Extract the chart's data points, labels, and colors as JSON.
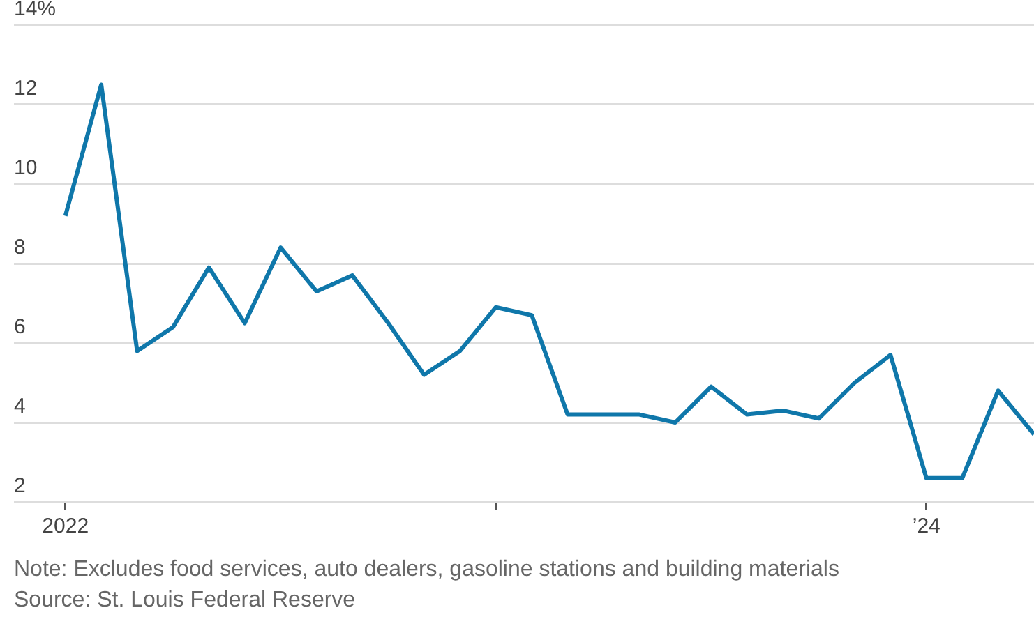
{
  "chart_data": {
    "type": "line",
    "x": [
      "2022-01",
      "2022-02",
      "2022-03",
      "2022-04",
      "2022-05",
      "2022-06",
      "2022-07",
      "2022-08",
      "2022-09",
      "2022-10",
      "2022-11",
      "2022-12",
      "2023-01",
      "2023-02",
      "2023-03",
      "2023-04",
      "2023-05",
      "2023-06",
      "2023-07",
      "2023-08",
      "2023-09",
      "2023-10",
      "2023-11",
      "2023-12",
      "2024-01",
      "2024-02",
      "2024-03",
      "2024-04"
    ],
    "series": [
      {
        "color": "#0f77aa",
        "values": [
          9.2,
          12.5,
          5.8,
          6.4,
          7.9,
          6.5,
          8.4,
          7.3,
          7.7,
          6.5,
          5.2,
          5.8,
          6.9,
          6.7,
          4.2,
          4.2,
          4.2,
          4.0,
          4.9,
          4.2,
          4.3,
          4.1,
          5.0,
          5.7,
          2.6,
          2.6,
          4.8,
          3.7
        ]
      }
    ],
    "xlim": [
      "2021-11-18",
      "2024-04"
    ],
    "xticks": [
      {
        "value": "2022-01",
        "label": "2022"
      },
      {
        "value": "2023-01",
        "label": null
      },
      {
        "value": "2024-01",
        "label": "’24"
      }
    ],
    "ylim": [
      2,
      14
    ],
    "yticks": [
      2,
      4,
      6,
      8,
      10,
      12,
      {
        "value": 14,
        "label": "14%"
      }
    ],
    "grid": "y",
    "marker": "none",
    "line_style": "solid",
    "legend": false,
    "annotations": [
      "Note: Excludes food services, auto dealers, gasoline stations and building materials",
      "Source: St. Louis Federal Reserve"
    ]
  }
}
